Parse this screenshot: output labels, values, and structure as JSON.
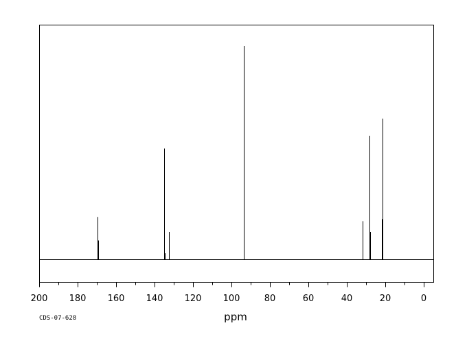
{
  "chart_data": {
    "type": "line",
    "title": "",
    "xlabel": "ppm",
    "ylabel": "",
    "xlim": [
      200,
      -5
    ],
    "x_reversed": true,
    "ticks": [
      200,
      180,
      160,
      140,
      120,
      100,
      80,
      60,
      40,
      20,
      0
    ],
    "tick_labels": [
      "200",
      "180",
      "160",
      "140",
      "120",
      "100",
      "80",
      "60",
      "40",
      "20",
      "0"
    ],
    "minor_tick_step": 10,
    "grid": false,
    "intensity_units": "relative (tallest = 1.0)",
    "peaks": [
      {
        "ppm": 169.6,
        "intensity": 0.2
      },
      {
        "ppm": 169.3,
        "intensity": 0.09
      },
      {
        "ppm": 134.9,
        "intensity": 0.52
      },
      {
        "ppm": 134.6,
        "intensity": 0.03
      },
      {
        "ppm": 132.6,
        "intensity": 0.13
      },
      {
        "ppm": 93.7,
        "intensity": 1.0
      },
      {
        "ppm": 93.4,
        "intensity": 0.47
      },
      {
        "ppm": 31.9,
        "intensity": 0.18
      },
      {
        "ppm": 28.3,
        "intensity": 0.58
      },
      {
        "ppm": 28.0,
        "intensity": 0.13
      },
      {
        "ppm": 21.9,
        "intensity": 0.19
      },
      {
        "ppm": 21.6,
        "intensity": 0.66
      }
    ],
    "code": "CDS-07-628"
  }
}
